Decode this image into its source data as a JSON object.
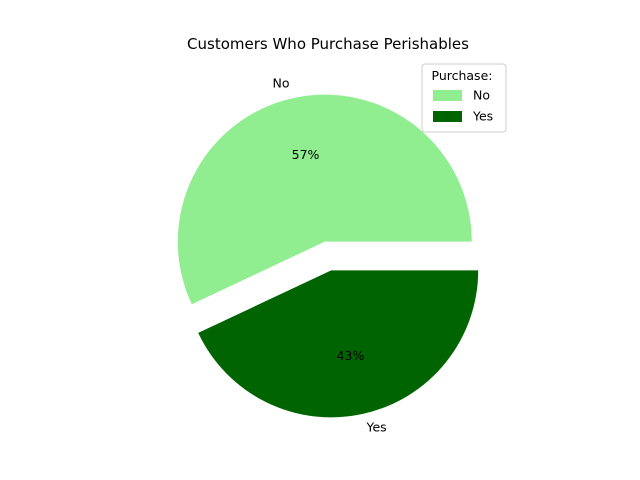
{
  "chart_data": {
    "type": "pie",
    "title": "Customers Who Purchase Perishables",
    "categories": [
      "No",
      "Yes"
    ],
    "values": [
      57,
      43
    ],
    "pct_labels": [
      "57%",
      "43%"
    ],
    "colors": [
      "#90ee90",
      "#006400"
    ],
    "exploded": [
      "No",
      "Yes"
    ],
    "legend": {
      "title": "Purchase:",
      "entries": [
        "No",
        "Yes"
      ],
      "placement": "upper-right"
    }
  }
}
